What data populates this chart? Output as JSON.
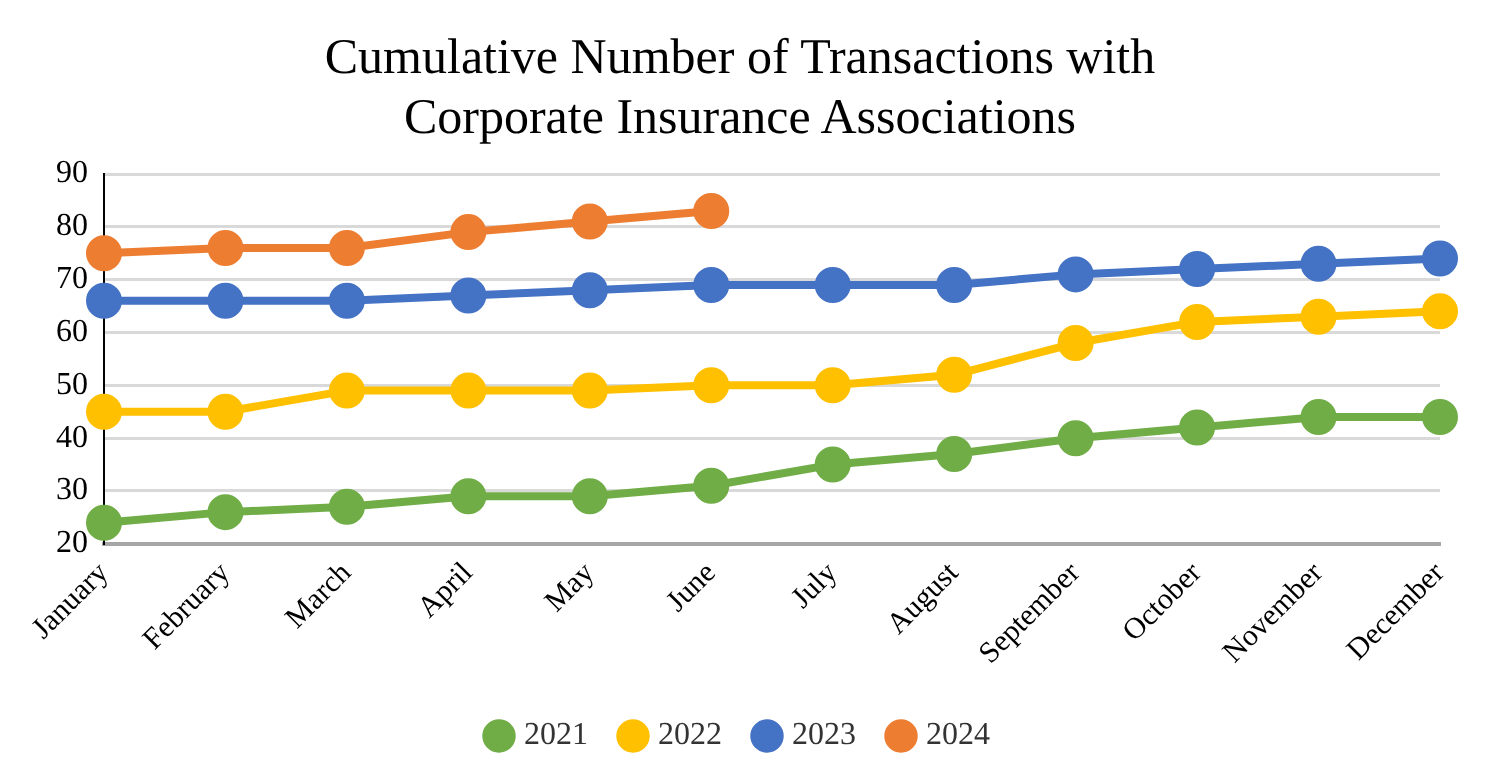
{
  "chart_data": {
    "type": "line",
    "title": "Cumulative Number of Transactions with Corporate Insurance Associations",
    "categories": [
      "January",
      "February",
      "March",
      "April",
      "May",
      "June",
      "July",
      "August",
      "September",
      "October",
      "November",
      "December"
    ],
    "series": [
      {
        "name": "2021",
        "color": "#70ad47",
        "values": [
          24,
          26,
          27,
          29,
          29,
          31,
          35,
          37,
          40,
          42,
          44,
          44
        ]
      },
      {
        "name": "2022",
        "color": "#ffc000",
        "values": [
          45,
          45,
          49,
          49,
          49,
          50,
          50,
          52,
          58,
          62,
          63,
          64
        ]
      },
      {
        "name": "2023",
        "color": "#4472c4",
        "values": [
          66,
          66,
          66,
          67,
          68,
          69,
          69,
          69,
          71,
          72,
          73,
          74
        ]
      },
      {
        "name": "2024",
        "color": "#ed7d31",
        "values": [
          75,
          76,
          76,
          79,
          81,
          83,
          null,
          null,
          null,
          null,
          null,
          null
        ]
      }
    ],
    "ylim": [
      20,
      90
    ],
    "yticks": [
      20,
      30,
      40,
      50,
      60,
      70,
      80,
      90
    ],
    "grid": "y",
    "legend": "bottom",
    "marker": "circle",
    "line_style": "solid"
  }
}
